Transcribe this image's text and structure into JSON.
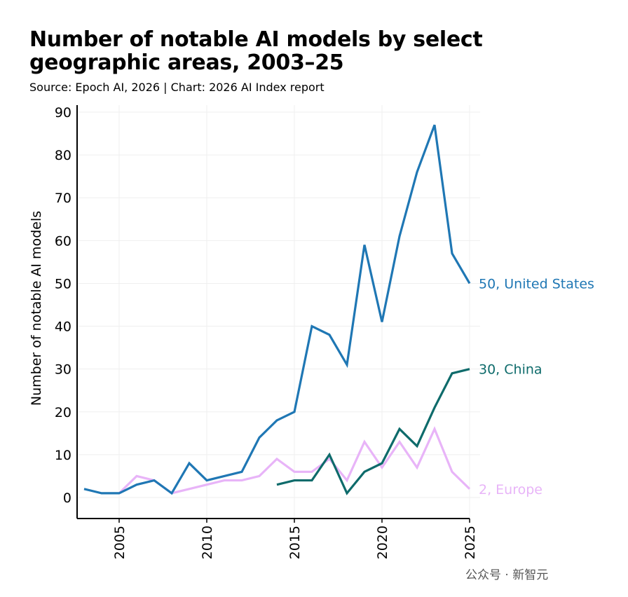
{
  "title": "Number of notable AI models by select geographic areas, 2003–25",
  "subtitle": "Source: Epoch AI, 2026 | Chart: 2026 AI Index report",
  "watermark": "公众号 · 新智元",
  "chart_data": {
    "type": "line",
    "title": "Number of notable AI models by select geographic areas, 2003–25",
    "ylabel": "Number of notable AI models",
    "xlabel": "",
    "xlim": [
      2003,
      2025
    ],
    "ylim": [
      -5,
      95
    ],
    "xticks": [
      2005,
      2010,
      2015,
      2020,
      2025
    ],
    "yticks": [
      0,
      10,
      20,
      30,
      40,
      50,
      60,
      70,
      80,
      90
    ],
    "grid": true,
    "legend": "end-of-line labels",
    "series": [
      {
        "name": "United States",
        "end_label": "50, United States",
        "color": "#1f77b4",
        "x": [
          2003,
          2004,
          2005,
          2006,
          2007,
          2008,
          2009,
          2010,
          2011,
          2012,
          2013,
          2014,
          2015,
          2016,
          2017,
          2018,
          2019,
          2020,
          2021,
          2022,
          2023,
          2024,
          2025
        ],
        "values": [
          2,
          1,
          1,
          3,
          4,
          1,
          8,
          4,
          5,
          6,
          14,
          18,
          20,
          40,
          38,
          31,
          59,
          41,
          61,
          76,
          87,
          57,
          50
        ]
      },
      {
        "name": "China",
        "end_label": "30, China",
        "color": "#0e6b6b",
        "x": [
          2014,
          2015,
          2016,
          2017,
          2018,
          2019,
          2020,
          2021,
          2022,
          2023,
          2024,
          2025
        ],
        "values": [
          3,
          4,
          4,
          10,
          1,
          6,
          8,
          16,
          12,
          21,
          29,
          30
        ]
      },
      {
        "name": "Europe",
        "end_label": "2, Europe",
        "color": "#e8b4f8",
        "x": [
          2005,
          2006,
          2007,
          2008,
          2009,
          2010,
          2011,
          2012,
          2013,
          2014,
          2015,
          2016,
          2017,
          2018,
          2019,
          2020,
          2021,
          2022,
          2023,
          2024,
          2025
        ],
        "values": [
          1,
          5,
          4,
          1,
          2,
          3,
          4,
          4,
          5,
          9,
          6,
          6,
          9,
          4,
          13,
          7,
          13,
          7,
          16,
          6,
          2
        ]
      }
    ]
  }
}
